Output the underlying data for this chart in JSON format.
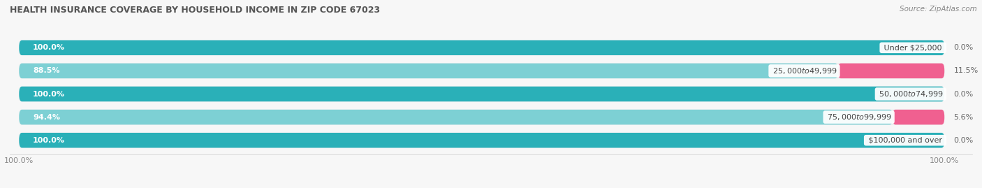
{
  "title": "HEALTH INSURANCE COVERAGE BY HOUSEHOLD INCOME IN ZIP CODE 67023",
  "source": "Source: ZipAtlas.com",
  "categories": [
    "Under $25,000",
    "$25,000 to $49,999",
    "$50,000 to $74,999",
    "$75,000 to $99,999",
    "$100,000 and over"
  ],
  "with_coverage": [
    100.0,
    88.5,
    100.0,
    94.4,
    100.0
  ],
  "without_coverage": [
    0.0,
    11.5,
    0.0,
    5.6,
    0.0
  ],
  "color_with_dark": "#2ab0b8",
  "color_with_light": "#7dd0d4",
  "color_without_dark": "#f06090",
  "color_without_light": "#f4a0b8",
  "row_bg": "#e8e8ea",
  "background": "#f7f7f7",
  "title_fontsize": 9,
  "label_fontsize": 8,
  "tick_fontsize": 8,
  "legend_fontsize": 8,
  "bar_height": 0.65,
  "xlim": [
    0,
    100
  ]
}
